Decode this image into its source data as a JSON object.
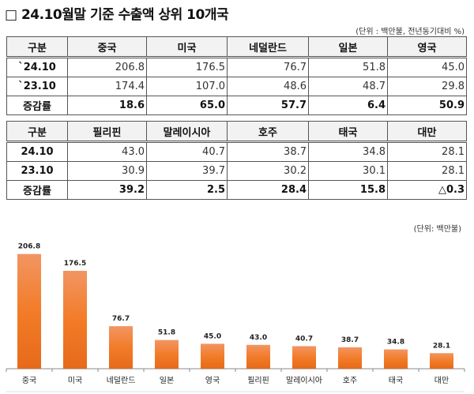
{
  "title": "□ 24.10월말 기준 수출액 상위 10개국",
  "table_unit": "(단위 : 백만불, 전년동기대비 %)",
  "tables": [
    {
      "header": [
        "구분",
        "중국",
        "미국",
        "네덜란드",
        "일본",
        "영국"
      ],
      "rows": [
        {
          "label": "`24.10",
          "values": [
            "206.8",
            "176.5",
            "76.7",
            "51.8",
            "45.0"
          ]
        },
        {
          "label": "`23.10",
          "values": [
            "174.4",
            "107.0",
            "48.6",
            "48.7",
            "29.8"
          ]
        },
        {
          "label": "증감률",
          "values": [
            "18.6",
            "65.0",
            "57.7",
            "6.4",
            "50.9"
          ]
        }
      ]
    },
    {
      "header": [
        "구분",
        "필리핀",
        "말레이시아",
        "호주",
        "태국",
        "대만"
      ],
      "rows": [
        {
          "label": "24.10",
          "values": [
            "43.0",
            "40.7",
            "38.7",
            "34.8",
            "28.1"
          ]
        },
        {
          "label": "23.10",
          "values": [
            "30.9",
            "39.7",
            "30.2",
            "30.1",
            "28.1"
          ]
        },
        {
          "label": "증감률",
          "values": [
            "39.2",
            "2.5",
            "28.4",
            "15.8",
            "△0.3"
          ]
        }
      ]
    }
  ],
  "chart_unit": "(단위: 백만불)",
  "chart_data": {
    "type": "bar",
    "categories": [
      "중국",
      "미국",
      "네덜란드",
      "일본",
      "영국",
      "필리핀",
      "말레이시아",
      "호주",
      "태국",
      "대만"
    ],
    "values": [
      206.8,
      176.5,
      76.7,
      51.8,
      45.0,
      43.0,
      40.7,
      38.7,
      34.8,
      28.1
    ],
    "labels": [
      "206.8",
      "176.5",
      "76.7",
      "51.8",
      "45.0",
      "43.0",
      "40.7",
      "38.7",
      "34.8",
      "28.1"
    ],
    "ylim": [
      0,
      215
    ],
    "grid": false,
    "bar_color": "#f07b2a"
  }
}
